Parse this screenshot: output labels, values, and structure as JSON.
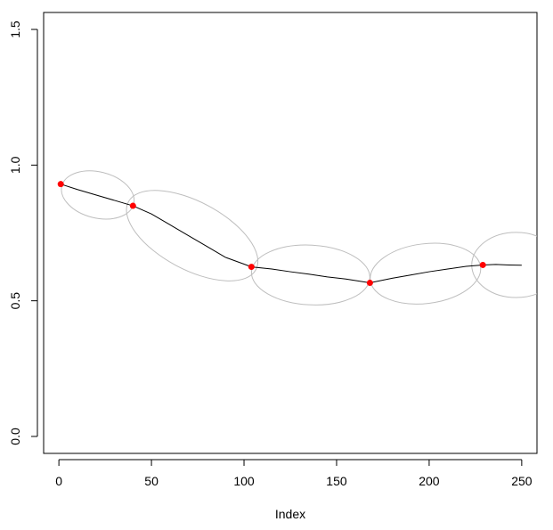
{
  "chart_data": {
    "type": "line",
    "title": "",
    "xlabel": "Index",
    "ylabel": "",
    "xlim": [
      -8.24,
      258.24
    ],
    "ylim": [
      -0.0625,
      1.5625
    ],
    "x_ticks": [
      0,
      50,
      100,
      150,
      200,
      250
    ],
    "x_tick_labels": [
      "0",
      "50",
      "100",
      "150",
      "200",
      "250"
    ],
    "y_ticks": [
      0.0,
      0.5,
      1.0,
      1.5
    ],
    "y_tick_labels": [
      "0.0",
      "0.5",
      "1.0",
      "1.5"
    ],
    "grid": false,
    "legend": "none",
    "series": [
      {
        "style": "line",
        "color": "#000000",
        "x": [
          1,
          10,
          20,
          30,
          40,
          50,
          60,
          70,
          80,
          90,
          100,
          104,
          115,
          125,
          135,
          145,
          155,
          168,
          180,
          190,
          200,
          210,
          220,
          229,
          236,
          243,
          250
        ],
        "y": [
          0.93,
          0.91,
          0.89,
          0.87,
          0.85,
          0.82,
          0.78,
          0.74,
          0.7,
          0.66,
          0.635,
          0.625,
          0.617,
          0.607,
          0.598,
          0.588,
          0.58,
          0.566,
          0.583,
          0.595,
          0.607,
          0.617,
          0.627,
          0.632,
          0.634,
          0.632,
          0.631
        ]
      },
      {
        "style": "points",
        "color": "#ff0000",
        "x": [
          1,
          40,
          104,
          168,
          229
        ],
        "y": [
          0.93,
          0.85,
          0.625,
          0.566,
          0.632
        ]
      }
    ],
    "ellipses": [
      {
        "color": "#bebebe",
        "cx": 21,
        "cy": 0.89,
        "rx": 20,
        "ry": 0.085,
        "angle_deg": -14
      },
      {
        "color": "#bebebe",
        "cx": 72,
        "cy": 0.74,
        "rx": 39,
        "ry": 0.125,
        "angle_deg": -28
      },
      {
        "color": "#bebebe",
        "cx": 136,
        "cy": 0.595,
        "rx": 32,
        "ry": 0.11,
        "angle_deg": -3
      },
      {
        "color": "#bebebe",
        "cx": 198,
        "cy": 0.6,
        "rx": 30,
        "ry": 0.11,
        "angle_deg": 7
      },
      {
        "color": "#bebebe",
        "cx": 247,
        "cy": 0.632,
        "rx": 24,
        "ry": 0.12,
        "angle_deg": 0
      }
    ]
  }
}
